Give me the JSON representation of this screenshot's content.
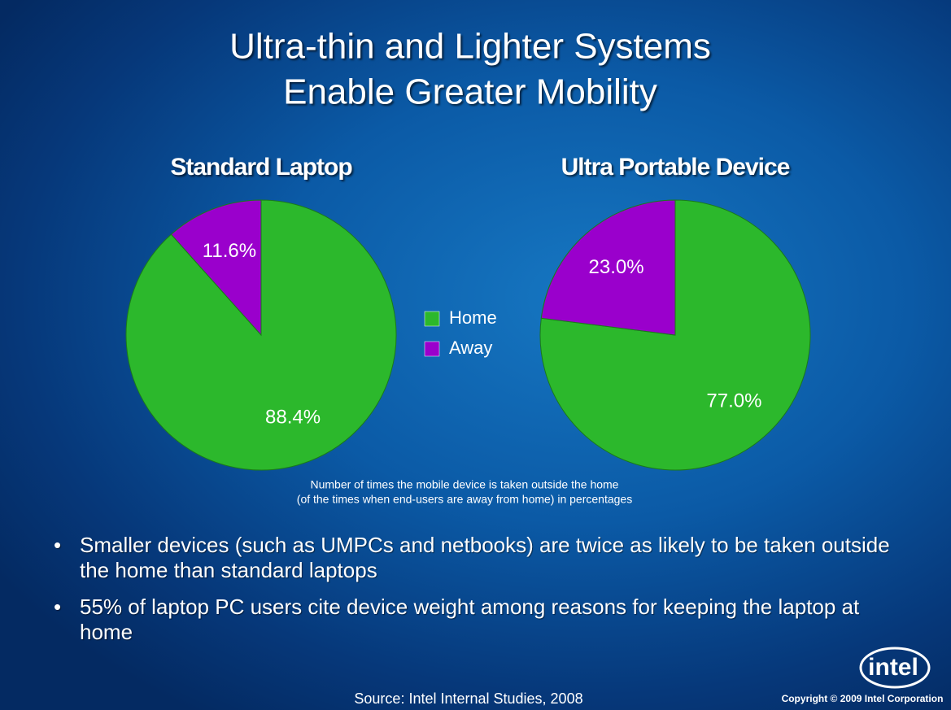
{
  "title": [
    "Ultra-thin and Lighter Systems",
    "Enable Greater Mobility"
  ],
  "chart_data": [
    {
      "type": "pie",
      "title": "Standard Laptop",
      "categories": [
        "Home",
        "Away"
      ],
      "values": [
        88.4,
        11.6
      ],
      "value_labels": [
        "88.4%",
        "11.6%"
      ],
      "colors": [
        "#2cb82c",
        "#9a00cc"
      ]
    },
    {
      "type": "pie",
      "title": "Ultra Portable Device",
      "categories": [
        "Home",
        "Away"
      ],
      "values": [
        77.0,
        23.0
      ],
      "value_labels": [
        "77.0%",
        "23.0%"
      ],
      "colors": [
        "#2cb82c",
        "#9a00cc"
      ]
    }
  ],
  "caption": [
    "Number of times the mobile device is taken outside the home",
    "(of the times when end-users are away from home) in percentages"
  ],
  "bullets": [
    "Smaller devices (such as UMPCs and netbooks) are twice as likely to be taken outside the home than standard laptops",
    "55% of laptop PC users cite device weight among reasons for keeping the laptop at home"
  ],
  "source": "Source:  Intel Internal Studies, 2008",
  "copyright": "Copyright © 2009 Intel Corporation",
  "logo": "intel"
}
